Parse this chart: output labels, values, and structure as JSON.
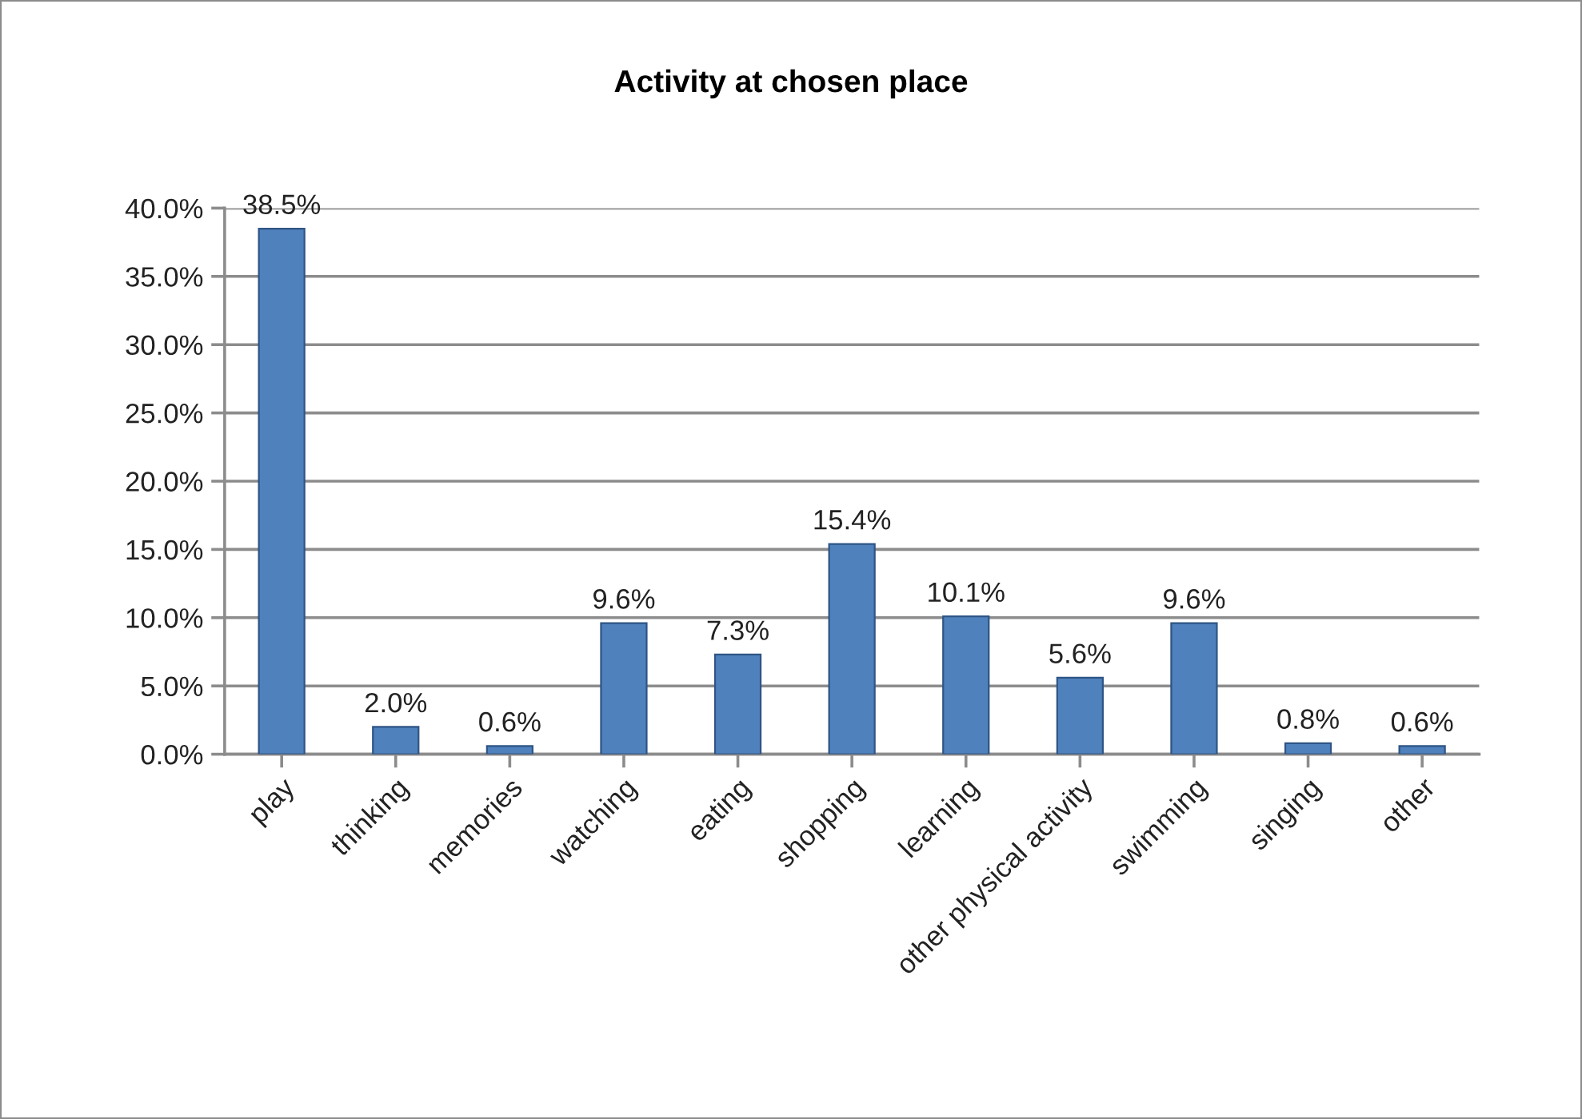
{
  "chart_data": {
    "type": "bar",
    "title": "Activity at chosen place",
    "categories": [
      "play",
      "thinking",
      "memories",
      "watching",
      "eating",
      "shopping",
      "learning",
      "other physical activity",
      "swimming",
      "singing",
      "other"
    ],
    "values": [
      38.5,
      2.0,
      0.6,
      9.6,
      7.3,
      15.4,
      10.1,
      5.6,
      9.6,
      0.8,
      0.6
    ],
    "value_labels": [
      "38.5%",
      "2.0%",
      "0.6%",
      "9.6%",
      "7.3%",
      "15.4%",
      "10.1%",
      "5.6%",
      "9.6%",
      "0.8%",
      "0.6%"
    ],
    "color": "#4f81bd",
    "ylim": [
      0,
      40
    ],
    "yticks": [
      {
        "value": 0,
        "label": "0.0%"
      },
      {
        "value": 5,
        "label": "5.0%"
      },
      {
        "value": 10,
        "label": "10.0%"
      },
      {
        "value": 15,
        "label": "15.0%"
      },
      {
        "value": 20,
        "label": "20.0%"
      },
      {
        "value": 25,
        "label": "25.0%"
      },
      {
        "value": 30,
        "label": "30.0%"
      },
      {
        "value": 35,
        "label": "35.0%"
      },
      {
        "value": 40,
        "label": "40.0%"
      }
    ],
    "grid": "y",
    "legend": false
  }
}
